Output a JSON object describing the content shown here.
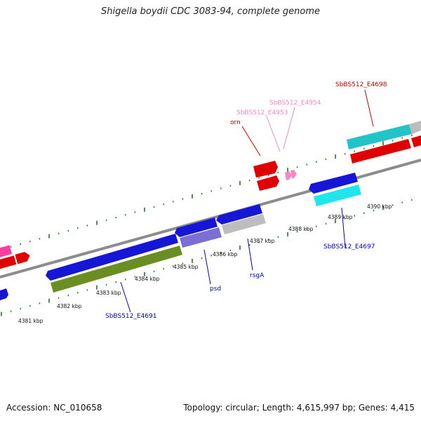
{
  "title": "Shigella boydii CDC 3083-94, complete genome",
  "footer": {
    "accession": "Accession: NC_010658",
    "stats": "Topology: circular; Length: 4,615,997 bp; Genes: 4,415"
  },
  "scale_labels": [
    "4381 kbp",
    "4382 kbp",
    "4383 kbp",
    "4384 kbp",
    "4385 kbp",
    "4386 kbp",
    "4387 kbp",
    "4388 kbp",
    "4389 kbp",
    "4390 kbp"
  ],
  "gene_labels": {
    "sbbs512_e4698": "SbBS512_E4698",
    "sbbs512_e4954": "SbBS512_E4954",
    "sbbs512_e4953": "SbBS512_E4953",
    "orn": "orn",
    "sbbs512_e4697": "SbBS512_E4697",
    "rsga": "rsgA",
    "psd": "psd",
    "sbbs512_e4691": "SbBS512_E4691"
  },
  "colors": {
    "backbone": "#8c8c8c",
    "tick": "#1f7a1f",
    "blue": "#1616d6",
    "red": "#e00000",
    "olive": "#6b8e23",
    "lavender": "#7b6fd6",
    "grey": "#bdbdbd",
    "cyan": "#1fe6ea",
    "teal": "#22c4c8",
    "pink": "#ff3fa0",
    "light_pink": "#f08ac0",
    "label_blue": "#0000cc",
    "label_red": "#cc0000",
    "label_pink": "#f08ac0"
  }
}
